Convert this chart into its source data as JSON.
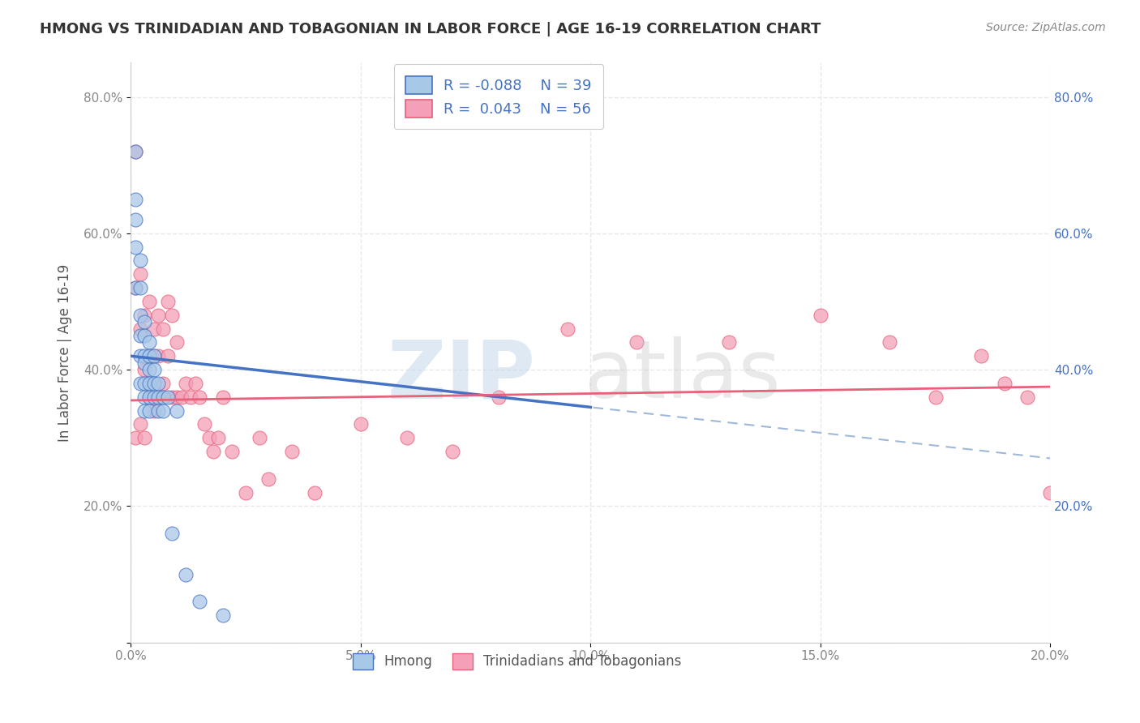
{
  "title": "HMONG VS TRINIDADIAN AND TOBAGONIAN IN LABOR FORCE | AGE 16-19 CORRELATION CHART",
  "source": "Source: ZipAtlas.com",
  "ylabel": "In Labor Force | Age 16-19",
  "xlim": [
    0.0,
    0.2
  ],
  "ylim": [
    0.0,
    0.85
  ],
  "xticks": [
    0.0,
    0.05,
    0.1,
    0.15,
    0.2
  ],
  "yticks": [
    0.0,
    0.2,
    0.4,
    0.6,
    0.8
  ],
  "ytick_labels": [
    "",
    "20.0%",
    "40.0%",
    "60.0%",
    "80.0%"
  ],
  "xtick_labels": [
    "0.0%",
    "5.0%",
    "10.0%",
    "15.0%",
    "20.0%"
  ],
  "right_ytick_labels": [
    "20.0%",
    "40.0%",
    "60.0%",
    "80.0%"
  ],
  "right_yticks": [
    0.2,
    0.4,
    0.6,
    0.8
  ],
  "hmong_color": "#a8c8e8",
  "trini_color": "#f4a0b8",
  "hmong_line_color": "#4472c4",
  "trini_line_color": "#e8607a",
  "hmong_dash_color": "#a0b8d8",
  "grid_color": "#e8e8e8",
  "grid_style": "--",
  "background_color": "#ffffff",
  "hmong_x": [
    0.001,
    0.001,
    0.001,
    0.001,
    0.001,
    0.002,
    0.002,
    0.002,
    0.002,
    0.002,
    0.002,
    0.003,
    0.003,
    0.003,
    0.003,
    0.003,
    0.003,
    0.003,
    0.004,
    0.004,
    0.004,
    0.004,
    0.004,
    0.004,
    0.005,
    0.005,
    0.005,
    0.005,
    0.006,
    0.006,
    0.006,
    0.007,
    0.007,
    0.008,
    0.009,
    0.01,
    0.012,
    0.015,
    0.02
  ],
  "hmong_y": [
    0.72,
    0.65,
    0.62,
    0.58,
    0.52,
    0.56,
    0.52,
    0.48,
    0.45,
    0.42,
    0.38,
    0.47,
    0.45,
    0.42,
    0.41,
    0.38,
    0.36,
    0.34,
    0.44,
    0.42,
    0.4,
    0.38,
    0.36,
    0.34,
    0.42,
    0.4,
    0.38,
    0.36,
    0.38,
    0.36,
    0.34,
    0.36,
    0.34,
    0.36,
    0.16,
    0.34,
    0.1,
    0.06,
    0.04
  ],
  "trini_x": [
    0.001,
    0.001,
    0.001,
    0.002,
    0.002,
    0.002,
    0.003,
    0.003,
    0.003,
    0.004,
    0.004,
    0.004,
    0.005,
    0.005,
    0.005,
    0.006,
    0.006,
    0.006,
    0.007,
    0.007,
    0.008,
    0.008,
    0.009,
    0.009,
    0.01,
    0.01,
    0.011,
    0.012,
    0.013,
    0.014,
    0.015,
    0.016,
    0.017,
    0.018,
    0.019,
    0.02,
    0.022,
    0.025,
    0.028,
    0.03,
    0.035,
    0.04,
    0.05,
    0.06,
    0.07,
    0.08,
    0.095,
    0.11,
    0.13,
    0.15,
    0.165,
    0.175,
    0.185,
    0.19,
    0.195,
    0.2
  ],
  "trini_y": [
    0.72,
    0.52,
    0.3,
    0.54,
    0.46,
    0.32,
    0.48,
    0.4,
    0.3,
    0.5,
    0.42,
    0.36,
    0.46,
    0.42,
    0.34,
    0.48,
    0.42,
    0.36,
    0.46,
    0.38,
    0.5,
    0.42,
    0.48,
    0.36,
    0.44,
    0.36,
    0.36,
    0.38,
    0.36,
    0.38,
    0.36,
    0.32,
    0.3,
    0.28,
    0.3,
    0.36,
    0.28,
    0.22,
    0.3,
    0.24,
    0.28,
    0.22,
    0.32,
    0.3,
    0.28,
    0.36,
    0.46,
    0.44,
    0.44,
    0.48,
    0.44,
    0.36,
    0.42,
    0.38,
    0.36,
    0.22
  ],
  "hmong_trend_x0": 0.0,
  "hmong_trend_y0": 0.42,
  "hmong_trend_x1": 0.1,
  "hmong_trend_y1": 0.345,
  "trini_trend_x0": 0.0,
  "trini_trend_y0": 0.355,
  "trini_trend_x1": 0.2,
  "trini_trend_y1": 0.375
}
